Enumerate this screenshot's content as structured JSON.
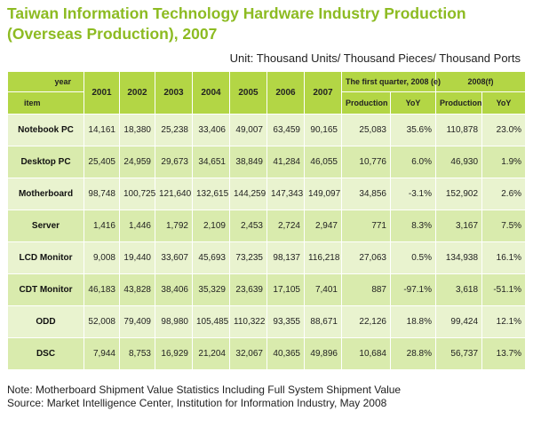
{
  "title": "Taiwan Information Technology Hardware Industry Production (Overseas Production), 2007",
  "unit": "Unit: Thousand Units/ Thousand Pieces/ Thousand Ports",
  "header": {
    "year_label": "year",
    "item_label": "item",
    "years": [
      "2001",
      "2002",
      "2003",
      "2004",
      "2005",
      "2006",
      "2007"
    ],
    "group1": "The first quarter, 2008 (e)",
    "group2": "2008(f)",
    "production": "Production",
    "yoy": "YoY"
  },
  "rows": [
    {
      "item": "Notebook PC",
      "values": [
        "14,161",
        "18,380",
        "25,238",
        "33,406",
        "49,007",
        "63,459",
        "90,165",
        "25,083",
        "35.6%",
        "110,878",
        "23.0%"
      ]
    },
    {
      "item": "Desktop PC",
      "values": [
        "25,405",
        "24,959",
        "29,673",
        "34,651",
        "38,849",
        "41,284",
        "46,055",
        "10,776",
        "6.0%",
        "46,930",
        "1.9%"
      ]
    },
    {
      "item": "Motherboard",
      "values": [
        "98,748",
        "100,725",
        "121,640",
        "132,615",
        "144,259",
        "147,343",
        "149,097",
        "34,856",
        "-3.1%",
        "152,902",
        "2.6%"
      ]
    },
    {
      "item": "Server",
      "values": [
        "1,416",
        "1,446",
        "1,792",
        "2,109",
        "2,453",
        "2,724",
        "2,947",
        "771",
        "8.3%",
        "3,167",
        "7.5%"
      ]
    },
    {
      "item": "LCD Monitor",
      "values": [
        "9,008",
        "19,440",
        "33,607",
        "45,693",
        "73,235",
        "98,137",
        "116,218",
        "27,063",
        "0.5%",
        "134,938",
        "16.1%"
      ]
    },
    {
      "item": "CDT Monitor",
      "values": [
        "46,183",
        "43,828",
        "38,406",
        "35,329",
        "23,639",
        "17,105",
        "7,401",
        "887",
        "-97.1%",
        "3,618",
        "-51.1%"
      ]
    },
    {
      "item": "ODD",
      "values": [
        "52,008",
        "79,409",
        "98,980",
        "105,485",
        "110,322",
        "93,355",
        "88,671",
        "22,126",
        "18.8%",
        "99,424",
        "12.1%"
      ]
    },
    {
      "item": "DSC",
      "values": [
        "7,944",
        "8,753",
        "16,929",
        "21,204",
        "32,067",
        "40,365",
        "49,896",
        "10,684",
        "28.8%",
        "56,737",
        "13.7%"
      ]
    }
  ],
  "notes": [
    "Note: Motherboard Shipment Value Statistics Including Full System Shipment Value",
    "Source: Market Intelligence Center, Institution for Information Industry, May 2008"
  ],
  "colors": {
    "title": "#8dbb22",
    "header_bg": "#b3d645",
    "row_light": "#e9f3cf",
    "row_dark": "#d9ebad"
  }
}
